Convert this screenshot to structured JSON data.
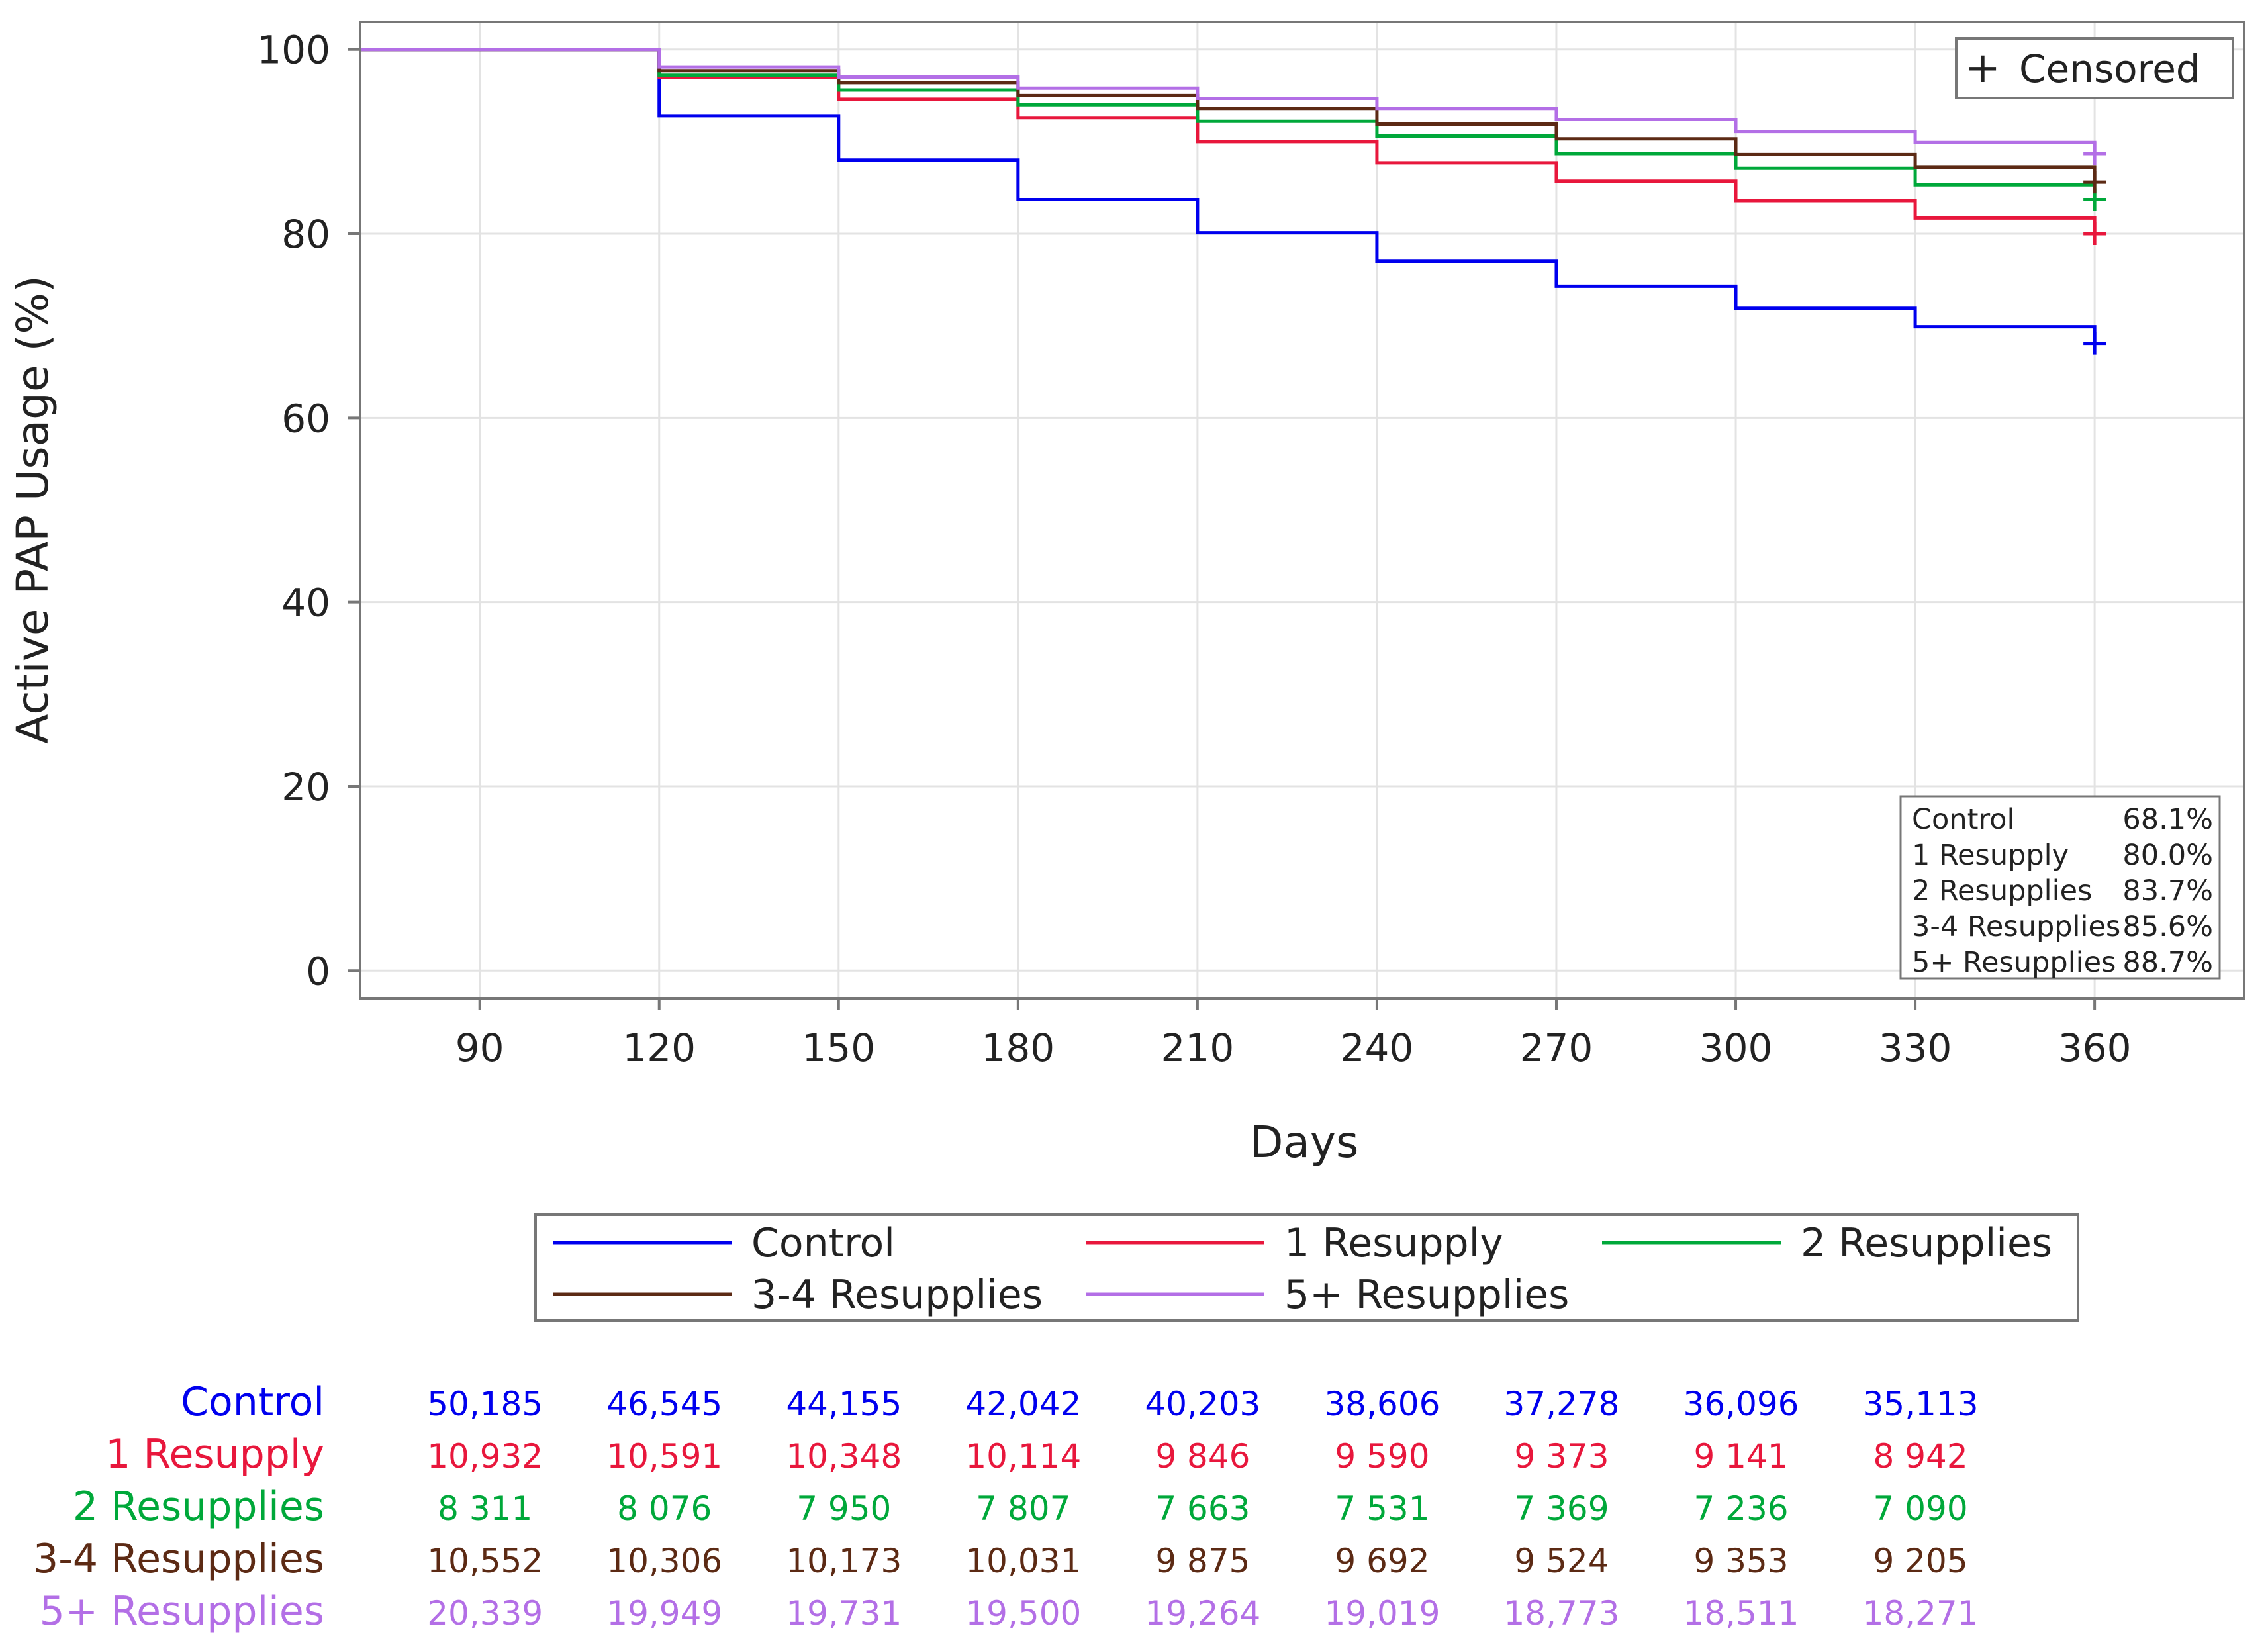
{
  "chart_data": {
    "type": "line",
    "subtype": "kaplan-meier-step",
    "xlabel": "Days",
    "ylabel": "Active PAP Usage (%)",
    "xlim": [
      70,
      385
    ],
    "ylim": [
      -3,
      103
    ],
    "x_ticks": [
      "90",
      "120",
      "150",
      "180",
      "210",
      "240",
      "270",
      "300",
      "330",
      "360"
    ],
    "x_tick_values": [
      90,
      120,
      150,
      180,
      210,
      240,
      270,
      300,
      330,
      360
    ],
    "y_ticks": [
      "0",
      "20",
      "40",
      "60",
      "80",
      "100"
    ],
    "y_tick_values": [
      0,
      20,
      40,
      60,
      80,
      100
    ],
    "grid": true,
    "censored_legend": {
      "symbol": "+",
      "label": "Censored"
    },
    "x": [
      70,
      120,
      150,
      180,
      210,
      240,
      270,
      300,
      330,
      360
    ],
    "series": [
      {
        "name": "Control",
        "color": "#0000ee",
        "values": [
          100,
          92.8,
          88.0,
          83.7,
          80.1,
          77.0,
          74.3,
          71.9,
          69.9,
          68.1
        ],
        "censor_value": 68.1
      },
      {
        "name": "1 Resupply",
        "color": "#e8173c",
        "values": [
          100,
          97.0,
          94.6,
          92.6,
          90.0,
          87.7,
          85.7,
          83.6,
          81.7,
          80.0
        ],
        "censor_value": 80.0
      },
      {
        "name": "2 Resupplies",
        "color": "#00a83a",
        "values": [
          100,
          97.2,
          95.6,
          94.0,
          92.2,
          90.6,
          88.7,
          87.1,
          85.3,
          83.7
        ],
        "censor_value": 83.7
      },
      {
        "name": "3-4 Resupplies",
        "color": "#5c2a14",
        "values": [
          100,
          97.7,
          96.4,
          95.0,
          93.6,
          91.9,
          90.3,
          88.6,
          87.2,
          85.6
        ],
        "censor_value": 85.6
      },
      {
        "name": "5+ Resupplies",
        "color": "#b36fe6",
        "values": [
          100,
          98.1,
          97.0,
          95.8,
          94.7,
          93.6,
          92.4,
          91.1,
          89.9,
          88.7
        ],
        "censor_value": 88.7
      }
    ],
    "inset_table": {
      "rows": [
        {
          "label": "Control",
          "value": "68.1%"
        },
        {
          "label": "1 Resupply",
          "value": "80.0%"
        },
        {
          "label": "2 Resupplies",
          "value": "83.7%"
        },
        {
          "label": "3-4 Resupplies",
          "value": "85.6%"
        },
        {
          "label": "5+ Resupplies",
          "value": "88.7%"
        }
      ]
    },
    "legend": {
      "placement": "bottom",
      "entries": [
        "Control",
        "1 Resupply",
        "2 Resupplies",
        "3-4 Resupplies",
        "5+ Resupplies"
      ]
    },
    "at_risk_table": {
      "x": [
        90,
        120,
        150,
        180,
        210,
        240,
        270,
        300,
        330
      ],
      "rows": [
        {
          "label": "Control",
          "color": "#0000ee",
          "values": [
            "50,185",
            "46,545",
            "44,155",
            "42,042",
            "40,203",
            "38,606",
            "37,278",
            "36,096",
            "35,113"
          ]
        },
        {
          "label": "1 Resupply",
          "color": "#e8173c",
          "values": [
            "10,932",
            "10,591",
            "10,348",
            "10,114",
            "9 846",
            "9 590",
            "9 373",
            "9 141",
            "8 942"
          ]
        },
        {
          "label": "2 Resupplies",
          "color": "#00a83a",
          "values": [
            "8 311",
            "8 076",
            "7 950",
            "7 807",
            "7 663",
            "7 531",
            "7 369",
            "7 236",
            "7 090"
          ]
        },
        {
          "label": "3-4 Resupplies",
          "color": "#5c2a14",
          "values": [
            "10,552",
            "10,306",
            "10,173",
            "10,031",
            "9 875",
            "9 692",
            "9 524",
            "9 353",
            "9 205"
          ]
        },
        {
          "label": "5+ Resupplies",
          "color": "#b36fe6",
          "values": [
            "20,339",
            "19,949",
            "19,731",
            "19,500",
            "19,264",
            "19,019",
            "18,773",
            "18,511",
            "18,271"
          ]
        }
      ]
    }
  }
}
